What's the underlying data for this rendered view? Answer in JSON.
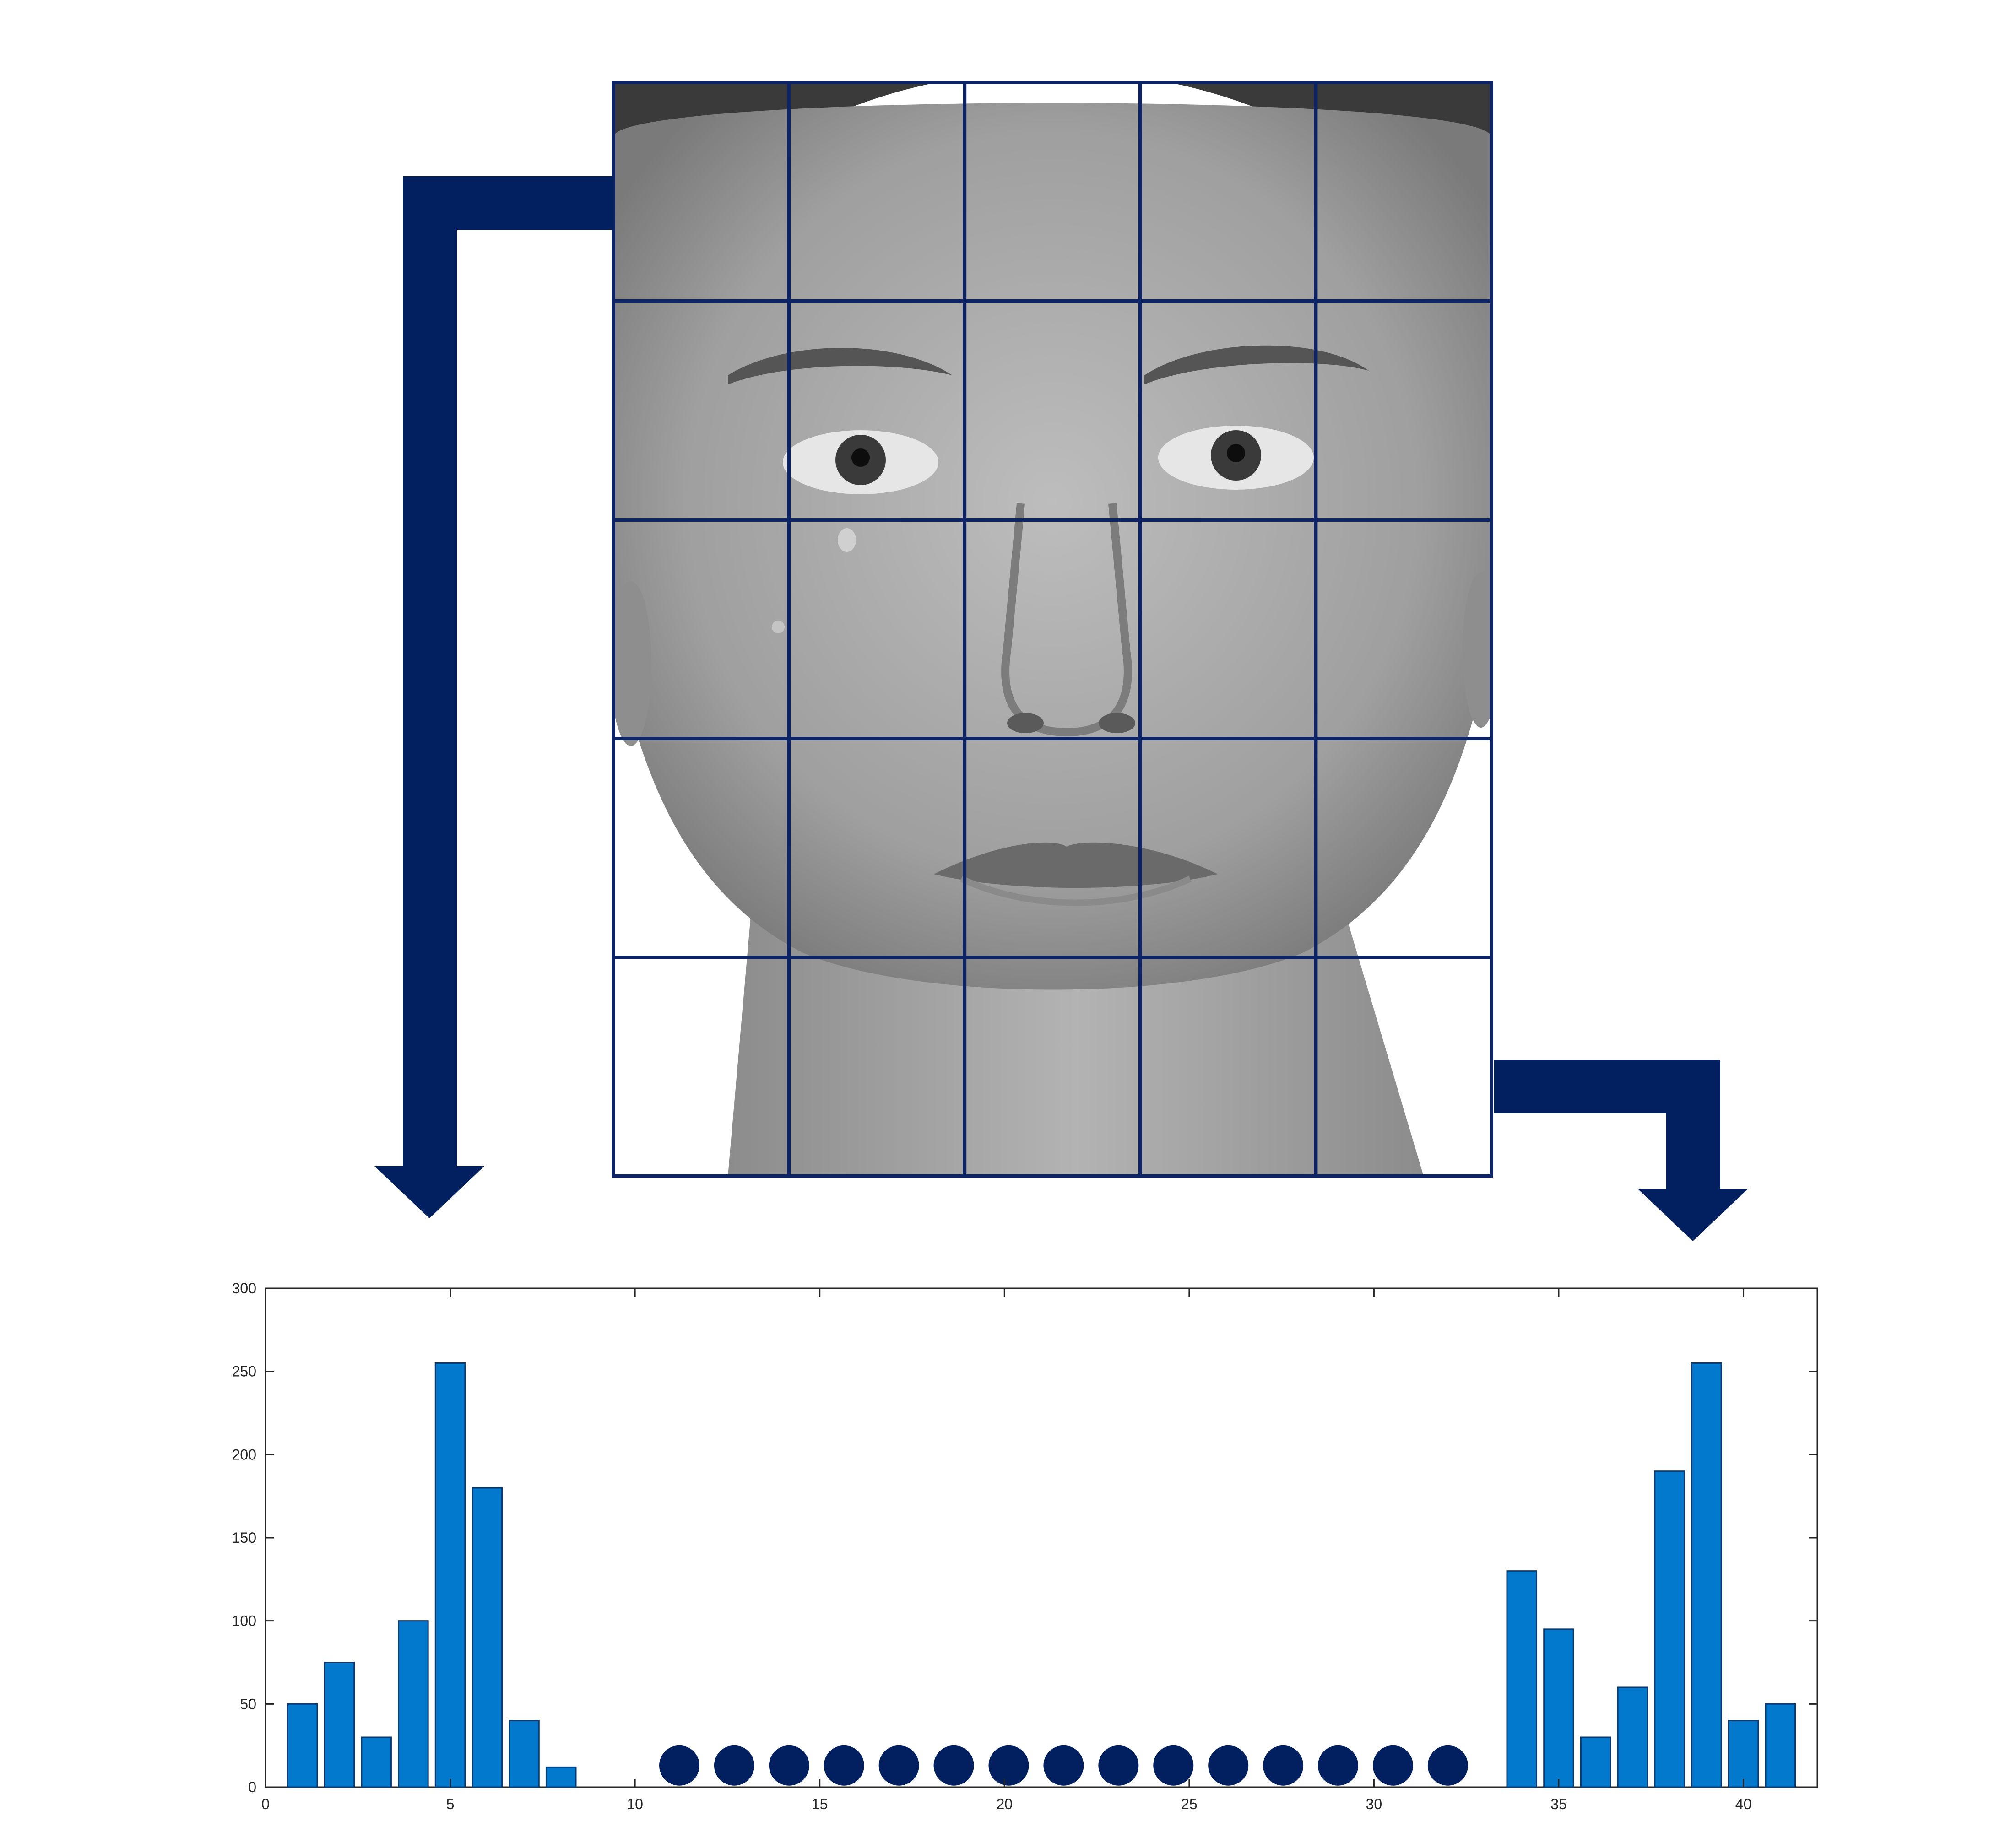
{
  "colors": {
    "grid": "#0d2363",
    "arrow": "#02205f",
    "bar": "#0379cd",
    "bar_edge": "#0a3a70",
    "dots": "#02205f",
    "axis": "#262626",
    "face_skin": "#a9a9a9",
    "face_hair": "#2b2b2b"
  },
  "face": {
    "description_icon": "grayscale-face-photo-icon",
    "grid_rows": 5,
    "grid_cols": 5
  },
  "chart_data": {
    "type": "bar",
    "x": [
      1,
      2,
      3,
      4,
      5,
      6,
      7,
      8,
      34,
      35,
      36,
      37,
      38,
      39,
      40,
      41
    ],
    "values": [
      50,
      75,
      30,
      100,
      255,
      180,
      40,
      12,
      130,
      95,
      30,
      60,
      190,
      255,
      40,
      50
    ],
    "xlim": [
      0,
      42
    ],
    "ylim": [
      0,
      300
    ],
    "xticks": [
      0,
      5,
      10,
      15,
      20,
      25,
      30,
      35,
      40
    ],
    "yticks": [
      0,
      50,
      100,
      150,
      200,
      250,
      300
    ],
    "xtick_labels": [
      "0",
      "5",
      "10",
      "15",
      "20",
      "25",
      "30",
      "35",
      "40"
    ],
    "ytick_labels": [
      "0",
      "50",
      "100",
      "150",
      "200",
      "250",
      "300"
    ],
    "ellipsis_dots": {
      "count": 15,
      "x_start": 11.2,
      "x_end": 32.0,
      "y": 13
    },
    "grid": false,
    "title": "",
    "xlabel": "",
    "ylabel": ""
  }
}
